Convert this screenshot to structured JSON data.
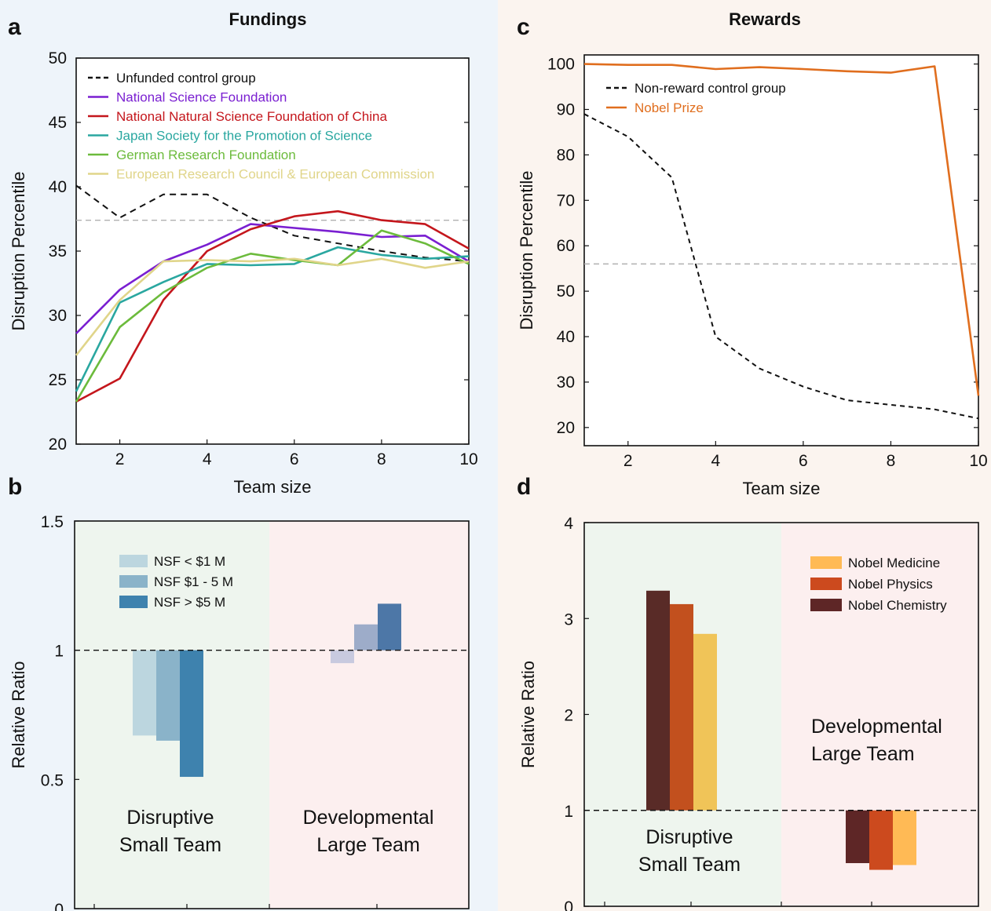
{
  "panels": {
    "a": {
      "letter": "a",
      "title": "Fundings"
    },
    "b": {
      "letter": "b"
    },
    "c": {
      "letter": "c",
      "title": "Rewards"
    },
    "d": {
      "letter": "d"
    }
  },
  "colors": {
    "bg_left": "#eef4fa",
    "bg_right": "#fbf4ef",
    "region_small": "#eef5ee",
    "region_large": "#fcefef"
  },
  "chart_data": [
    {
      "id": "a",
      "type": "line",
      "title": "Fundings",
      "xlabel": "Team size",
      "ylabel": "Disruption Percentile",
      "xlim": [
        1,
        10
      ],
      "ylim": [
        20,
        50
      ],
      "xticks": [
        2,
        4,
        6,
        8,
        10
      ],
      "yticks": [
        20,
        25,
        30,
        35,
        40,
        45,
        50
      ],
      "reference_line": 37.4,
      "legend_position": "top-left",
      "x": [
        1,
        2,
        3,
        4,
        5,
        6,
        7,
        8,
        9,
        10
      ],
      "series": [
        {
          "name": "Unfunded control group",
          "color": "#111111",
          "dash": true,
          "values": [
            40.1,
            37.6,
            39.4,
            39.4,
            37.6,
            36.2,
            35.6,
            35.0,
            34.5,
            34.2
          ]
        },
        {
          "name": "National Science Foundation",
          "color": "#7a1fd1",
          "values": [
            28.6,
            32.0,
            34.2,
            35.5,
            37.1,
            36.8,
            36.5,
            36.1,
            36.2,
            34.2
          ]
        },
        {
          "name": "National Natural Science Foundation of China",
          "color": "#c4161c",
          "values": [
            23.3,
            25.1,
            31.2,
            35.0,
            36.7,
            37.7,
            38.1,
            37.4,
            37.1,
            35.2
          ]
        },
        {
          "name": "Japan Society for the Promotion of Science",
          "color": "#2aa7a0",
          "values": [
            24.1,
            31.0,
            32.6,
            34.0,
            33.9,
            34.0,
            35.3,
            34.7,
            34.4,
            34.6
          ]
        },
        {
          "name": "German Research Foundation",
          "color": "#6cbb3c",
          "values": [
            23.3,
            29.1,
            31.8,
            33.7,
            34.8,
            34.3,
            33.9,
            36.6,
            35.6,
            34.0
          ]
        },
        {
          "name": "European Research Council & European Commission",
          "color": "#e0d58a",
          "values": [
            26.9,
            31.2,
            34.2,
            34.3,
            34.2,
            34.4,
            33.9,
            34.4,
            33.7,
            34.2
          ]
        }
      ]
    },
    {
      "id": "b",
      "type": "bar",
      "ylabel": "Relative Ratio",
      "ylim": [
        0,
        1.5
      ],
      "yticks": [
        0,
        0.5,
        1,
        1.5
      ],
      "ytick_labels": [
        "0",
        "0.5",
        "1",
        "1.5"
      ],
      "baseline": 1,
      "legend_position": "top-left",
      "regions": [
        {
          "lines": [
            "Disruptive",
            "Small Team"
          ]
        },
        {
          "lines": [
            "Developmental",
            "Large Team"
          ]
        }
      ],
      "categories": [
        "Disruptive Small Team",
        "Developmental Large Team"
      ],
      "series": [
        {
          "name": "NSF <  $1 M",
          "colors": [
            "#bcd6df",
            "#c8cadf"
          ],
          "values": [
            0.67,
            0.95
          ]
        },
        {
          "name": "NSF $1 - 5 M",
          "colors": [
            "#8ab3c9",
            "#9dacc9"
          ],
          "values": [
            0.65,
            1.1
          ]
        },
        {
          "name": "NSF > $5 M",
          "colors": [
            "#3e82ae",
            "#4d77a7"
          ],
          "values": [
            0.51,
            1.18
          ]
        }
      ]
    },
    {
      "id": "c",
      "type": "line",
      "title": "Rewards",
      "xlabel": "Team size",
      "ylabel": "Disruption Percentile",
      "xlim": [
        1,
        10
      ],
      "ylim": [
        16,
        102
      ],
      "xticks": [
        2,
        4,
        6,
        8,
        10
      ],
      "yticks": [
        20,
        30,
        40,
        50,
        60,
        70,
        80,
        90,
        100
      ],
      "reference_line": 56,
      "legend_position": "top-left",
      "x": [
        1,
        2,
        3,
        4,
        5,
        6,
        7,
        8,
        9,
        10
      ],
      "series": [
        {
          "name": "Non-reward control group",
          "color": "#111111",
          "dash": true,
          "values": [
            89,
            84,
            75,
            40,
            33,
            29,
            26,
            25,
            24,
            22
          ]
        },
        {
          "name": "Nobel Prize",
          "color": "#e06e1e",
          "values": [
            100,
            99.8,
            99.8,
            98.9,
            99.3,
            98.9,
            98.4,
            98.1,
            99.5,
            27
          ]
        }
      ]
    },
    {
      "id": "d",
      "type": "bar",
      "ylabel": "Relative Ratio",
      "ylim": [
        0,
        4
      ],
      "yticks": [
        0,
        1,
        2,
        3,
        4
      ],
      "ytick_labels": [
        "0",
        "1",
        "2",
        "3",
        "4"
      ],
      "baseline": 1,
      "legend_position": "top-right",
      "regions": [
        {
          "lines": [
            "Disruptive",
            "Small Team"
          ]
        },
        {
          "lines": [
            "Developmental",
            "Large Team"
          ]
        }
      ],
      "categories": [
        "Disruptive Small Team",
        "Developmental Large Team"
      ],
      "legend_order": [
        2,
        1,
        0
      ],
      "series": [
        {
          "name": "Nobel Chemistry",
          "colors": [
            "#592b27",
            "#5e2626"
          ],
          "values": [
            3.29,
            0.45
          ]
        },
        {
          "name": "Nobel Physics",
          "colors": [
            "#c2501e",
            "#cc4a1e"
          ],
          "values": [
            3.15,
            0.38
          ]
        },
        {
          "name": "Nobel Medicine",
          "colors": [
            "#f0c458",
            "#ffba55"
          ],
          "values": [
            2.84,
            0.43
          ]
        }
      ]
    }
  ]
}
